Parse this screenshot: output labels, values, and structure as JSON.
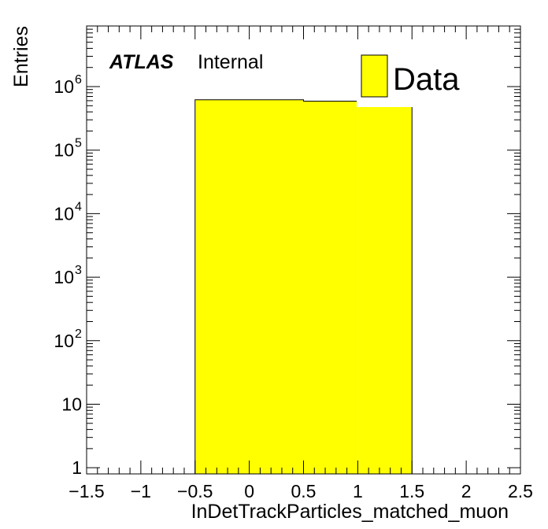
{
  "chart_data": {
    "type": "bar",
    "title": "",
    "xlabel": "InDetTrackParticles_matched_muon",
    "ylabel": "Entries",
    "xlim": [
      -1.5,
      2.5
    ],
    "ylim": [
      0.8,
      9000000
    ],
    "yscale": "log",
    "x_ticks": [
      "−1.5",
      "−1",
      "−0.5",
      "0",
      "0.5",
      "1",
      "1.5",
      "2",
      "2.5"
    ],
    "x_tick_values": [
      -1.5,
      -1,
      -0.5,
      0,
      0.5,
      1,
      1.5,
      2,
      2.5
    ],
    "y_tick_values": [
      1,
      10,
      100,
      1000,
      10000,
      100000,
      1000000
    ],
    "y_ticks": [
      {
        "base": "1",
        "exp": ""
      },
      {
        "base": "10",
        "exp": ""
      },
      {
        "base": "10",
        "exp": "2"
      },
      {
        "base": "10",
        "exp": "3"
      },
      {
        "base": "10",
        "exp": "4"
      },
      {
        "base": "10",
        "exp": "5"
      },
      {
        "base": "10",
        "exp": "6"
      }
    ],
    "bins": [
      {
        "x_low": -0.5,
        "x_high": 0.5,
        "value": 620000
      },
      {
        "x_low": 0.5,
        "x_high": 1.0,
        "value": 590000
      },
      {
        "x_low": 1.0,
        "x_high": 1.5,
        "value": 540000
      }
    ],
    "series": [
      {
        "name": "Data",
        "color": "#ffff00",
        "edge_color": "#000000"
      }
    ],
    "legend_position": "top-right",
    "grid": false
  },
  "labels": {
    "atlas": "ATLAS",
    "internal": "Internal"
  }
}
